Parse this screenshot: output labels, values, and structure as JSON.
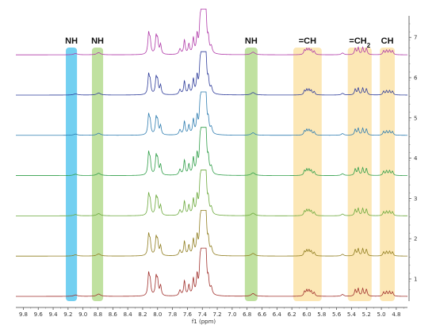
{
  "chart_data": {
    "type": "line",
    "title": "",
    "xlabel": "f1 (ppm)",
    "ylabel": "",
    "xlim": [
      9.9,
      4.65
    ],
    "x_reversed": true,
    "x_ticks": [
      9.8,
      9.6,
      9.4,
      9.2,
      9.0,
      8.8,
      8.6,
      8.4,
      8.2,
      8.0,
      7.8,
      7.6,
      7.4,
      7.2,
      7.0,
      6.8,
      6.6,
      6.4,
      6.2,
      6.0,
      5.8,
      5.6,
      5.4,
      5.2,
      5.0,
      4.8
    ],
    "x_tick_labels": [
      "9.8",
      "9.6",
      "9.4",
      "9.2",
      "9.0",
      "8.8",
      "8.6",
      "8.4",
      "8.2",
      "8.0",
      "7.8",
      "7.6",
      "7.4",
      "7.2",
      "7.0",
      "6.8",
      "6.6",
      "6.4",
      "6.2",
      "6.0",
      "5.8",
      "5.6",
      "5.4",
      "5.2",
      "5.0",
      "4.8"
    ],
    "right_axis_ticks": [
      1,
      2,
      3,
      4,
      5,
      6,
      7
    ],
    "right_axis_tick_labels": [
      "1",
      "2",
      "3",
      "4",
      "5",
      "6",
      "7"
    ],
    "grid": false,
    "bands": [
      {
        "label": "NH",
        "sub": "",
        "from": 9.23,
        "to": 9.08,
        "color": "#5bc8ef"
      },
      {
        "label": "NH",
        "sub": "",
        "from": 8.88,
        "to": 8.73,
        "color": "#b5dc8f"
      },
      {
        "label": "NH",
        "sub": "",
        "from": 6.83,
        "to": 6.66,
        "color": "#b5dc8f"
      },
      {
        "label": "=CH",
        "sub": "",
        "from": 6.18,
        "to": 5.8,
        "color": "#fbe3a8"
      },
      {
        "label": "=CH",
        "sub": "2",
        "from": 5.45,
        "to": 5.13,
        "color": "#fbe3a8"
      },
      {
        "label": "CH",
        "sub": "",
        "from": 5.02,
        "to": 4.82,
        "color": "#fbe3a8"
      }
    ],
    "peaks": [
      {
        "ppm": 9.1,
        "h": 0.03,
        "w": 0.03
      },
      {
        "ppm": 8.79,
        "h": 0.05,
        "w": 0.03
      },
      {
        "ppm": 8.12,
        "h": 0.45,
        "w": 0.012
      },
      {
        "ppm": 8.1,
        "h": 0.3,
        "w": 0.012
      },
      {
        "ppm": 8.02,
        "h": 0.38,
        "w": 0.012
      },
      {
        "ppm": 8.0,
        "h": 0.3,
        "w": 0.012
      },
      {
        "ppm": 7.96,
        "h": 0.22,
        "w": 0.012
      },
      {
        "ppm": 7.7,
        "h": 0.12,
        "w": 0.015
      },
      {
        "ppm": 7.64,
        "h": 0.32,
        "w": 0.012
      },
      {
        "ppm": 7.58,
        "h": 0.22,
        "w": 0.012
      },
      {
        "ppm": 7.52,
        "h": 0.35,
        "w": 0.012
      },
      {
        "ppm": 7.47,
        "h": 0.4,
        "w": 0.012
      },
      {
        "ppm": 7.43,
        "h": 0.55,
        "w": 0.012
      },
      {
        "ppm": 7.41,
        "h": 0.8,
        "w": 0.012
      },
      {
        "ppm": 7.39,
        "h": 1.0,
        "w": 0.012
      },
      {
        "ppm": 7.37,
        "h": 0.9,
        "w": 0.012
      },
      {
        "ppm": 7.35,
        "h": 0.65,
        "w": 0.012
      },
      {
        "ppm": 7.32,
        "h": 0.3,
        "w": 0.012
      },
      {
        "ppm": 7.28,
        "h": 0.15,
        "w": 0.015
      },
      {
        "ppm": 6.72,
        "h": 0.06,
        "w": 0.03
      },
      {
        "ppm": 6.03,
        "h": 0.1,
        "w": 0.012
      },
      {
        "ppm": 6.0,
        "h": 0.12,
        "w": 0.012
      },
      {
        "ppm": 5.97,
        "h": 0.12,
        "w": 0.012
      },
      {
        "ppm": 5.94,
        "h": 0.1,
        "w": 0.012
      },
      {
        "ppm": 5.9,
        "h": 0.08,
        "w": 0.012
      },
      {
        "ppm": 5.52,
        "h": 0.04,
        "w": 0.02
      },
      {
        "ppm": 5.35,
        "h": 0.14,
        "w": 0.012
      },
      {
        "ppm": 5.31,
        "h": 0.16,
        "w": 0.012
      },
      {
        "ppm": 5.25,
        "h": 0.16,
        "w": 0.012
      },
      {
        "ppm": 5.2,
        "h": 0.15,
        "w": 0.012
      },
      {
        "ppm": 4.97,
        "h": 0.09,
        "w": 0.012
      },
      {
        "ppm": 4.93,
        "h": 0.1,
        "w": 0.012
      },
      {
        "ppm": 4.89,
        "h": 0.1,
        "w": 0.012
      },
      {
        "ppm": 4.85,
        "h": 0.09,
        "w": 0.012
      }
    ],
    "series": [
      {
        "trace": 1,
        "color": "#a0302c",
        "scale": 1.0
      },
      {
        "trace": 2,
        "color": "#8f7d1f",
        "scale": 0.95
      },
      {
        "trace": 3,
        "color": "#6aa83a",
        "scale": 0.95
      },
      {
        "trace": 4,
        "color": "#2f9e48",
        "scale": 1.0
      },
      {
        "trace": 5,
        "color": "#2f7db0",
        "scale": 0.9
      },
      {
        "trace": 6,
        "color": "#2e3c9a",
        "scale": 0.9
      },
      {
        "trace": 7,
        "color": "#b03aa8",
        "scale": 0.95
      }
    ]
  }
}
